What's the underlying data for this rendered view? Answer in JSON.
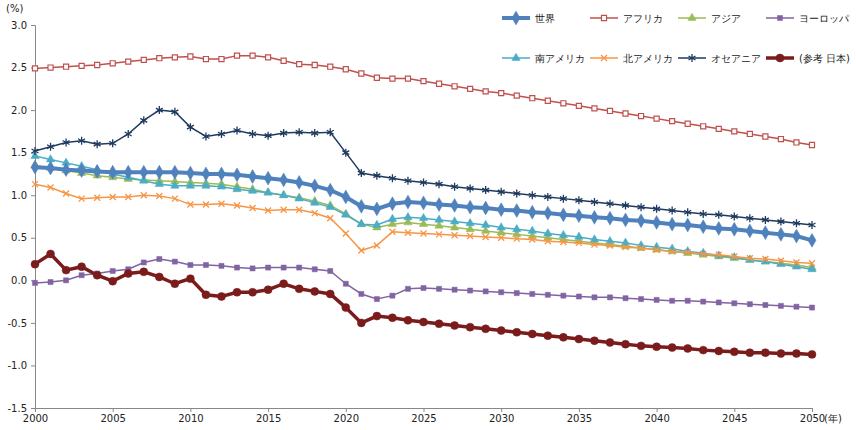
{
  "chart_data": {
    "type": "line",
    "x_label": "(年)",
    "y_label": "(%)",
    "x": [
      2000,
      2001,
      2002,
      2003,
      2004,
      2005,
      2006,
      2007,
      2008,
      2009,
      2010,
      2011,
      2012,
      2013,
      2014,
      2015,
      2016,
      2017,
      2018,
      2019,
      2020,
      2021,
      2022,
      2023,
      2024,
      2025,
      2026,
      2027,
      2028,
      2029,
      2030,
      2031,
      2032,
      2033,
      2034,
      2035,
      2036,
      2037,
      2038,
      2039,
      2040,
      2041,
      2042,
      2043,
      2044,
      2045,
      2046,
      2047,
      2048,
      2049,
      2050
    ],
    "xlim": [
      2000,
      2050
    ],
    "xticks": [
      2000,
      2005,
      2010,
      2015,
      2020,
      2025,
      2030,
      2035,
      2040,
      2045,
      2050
    ],
    "ylim": [
      -1.5,
      3.0
    ],
    "yticks": [
      -1.5,
      {
        "value": -1.0,
        "label": "-1.0"
      },
      -0.5,
      {
        "value": 0,
        "label": "0.0"
      },
      0.5,
      {
        "value": 1.0,
        "label": "1.0"
      },
      1.5,
      {
        "value": 2.0,
        "label": "2.0"
      },
      2.5,
      {
        "value": 3.0,
        "label": "3.0"
      }
    ],
    "grid": false,
    "legend": "top-right",
    "series": [
      {
        "name": "世界",
        "color": "#4f81bd",
        "marker": "diamond",
        "line_style": "solid",
        "values": [
          1.33,
          1.32,
          1.3,
          1.29,
          1.28,
          1.27,
          1.27,
          1.27,
          1.27,
          1.27,
          1.26,
          1.25,
          1.25,
          1.24,
          1.22,
          1.2,
          1.18,
          1.15,
          1.11,
          1.06,
          0.98,
          0.87,
          0.84,
          0.9,
          0.92,
          0.91,
          0.89,
          0.88,
          0.86,
          0.85,
          0.83,
          0.82,
          0.8,
          0.79,
          0.77,
          0.76,
          0.74,
          0.73,
          0.71,
          0.7,
          0.68,
          0.66,
          0.65,
          0.63,
          0.61,
          0.6,
          0.58,
          0.56,
          0.54,
          0.52,
          0.47
        ]
      },
      {
        "name": "アフリカ",
        "color": "#c0504d",
        "marker": "square_open",
        "line_style": "solid",
        "values": [
          2.49,
          2.5,
          2.51,
          2.52,
          2.53,
          2.55,
          2.57,
          2.59,
          2.61,
          2.62,
          2.63,
          2.6,
          2.6,
          2.64,
          2.64,
          2.62,
          2.58,
          2.54,
          2.53,
          2.51,
          2.48,
          2.43,
          2.38,
          2.37,
          2.37,
          2.34,
          2.31,
          2.28,
          2.25,
          2.22,
          2.2,
          2.17,
          2.14,
          2.11,
          2.08,
          2.05,
          2.02,
          1.99,
          1.96,
          1.93,
          1.9,
          1.87,
          1.84,
          1.81,
          1.78,
          1.75,
          1.72,
          1.69,
          1.66,
          1.62,
          1.59
        ]
      },
      {
        "name": "アジア",
        "color": "#9bbb59",
        "marker": "triangle",
        "line_style": "solid",
        "values": [
          1.35,
          1.32,
          1.29,
          1.26,
          1.23,
          1.21,
          1.19,
          1.18,
          1.17,
          1.16,
          1.15,
          1.14,
          1.13,
          1.1,
          1.07,
          1.03,
          1.0,
          0.97,
          0.93,
          0.88,
          0.78,
          0.66,
          0.62,
          0.66,
          0.68,
          0.66,
          0.64,
          0.62,
          0.6,
          0.58,
          0.56,
          0.54,
          0.52,
          0.5,
          0.48,
          0.46,
          0.44,
          0.42,
          0.4,
          0.38,
          0.36,
          0.34,
          0.32,
          0.3,
          0.28,
          0.26,
          0.24,
          0.22,
          0.2,
          0.18,
          0.15
        ]
      },
      {
        "name": "ヨーロッパ",
        "color": "#8064a2",
        "marker": "square",
        "line_style": "solid",
        "values": [
          -0.03,
          -0.02,
          0.0,
          0.06,
          0.08,
          0.11,
          0.13,
          0.21,
          0.25,
          0.22,
          0.18,
          0.18,
          0.17,
          0.15,
          0.14,
          0.15,
          0.15,
          0.15,
          0.13,
          0.11,
          -0.04,
          -0.16,
          -0.22,
          -0.18,
          -0.1,
          -0.09,
          -0.1,
          -0.11,
          -0.12,
          -0.13,
          -0.14,
          -0.15,
          -0.16,
          -0.17,
          -0.18,
          -0.19,
          -0.2,
          -0.2,
          -0.21,
          -0.22,
          -0.23,
          -0.24,
          -0.24,
          -0.25,
          -0.26,
          -0.27,
          -0.28,
          -0.29,
          -0.3,
          -0.31,
          -0.32
        ]
      },
      {
        "name": "南アメリカ",
        "color": "#4bacc6",
        "marker": "triangle",
        "line_style": "solid",
        "values": [
          1.46,
          1.42,
          1.38,
          1.34,
          1.3,
          1.25,
          1.21,
          1.17,
          1.13,
          1.11,
          1.11,
          1.11,
          1.1,
          1.07,
          1.05,
          1.03,
          1.0,
          0.96,
          0.91,
          0.86,
          0.77,
          0.66,
          0.65,
          0.72,
          0.74,
          0.73,
          0.71,
          0.69,
          0.67,
          0.65,
          0.62,
          0.6,
          0.58,
          0.55,
          0.53,
          0.51,
          0.48,
          0.46,
          0.44,
          0.41,
          0.39,
          0.37,
          0.34,
          0.32,
          0.29,
          0.27,
          0.24,
          0.22,
          0.19,
          0.16,
          0.13
        ]
      },
      {
        "name": "北アメリカ",
        "color": "#f79646",
        "marker": "x",
        "line_style": "solid",
        "values": [
          1.13,
          1.09,
          1.02,
          0.96,
          0.97,
          0.98,
          0.98,
          1.0,
          0.99,
          0.96,
          0.89,
          0.89,
          0.9,
          0.88,
          0.85,
          0.82,
          0.83,
          0.83,
          0.79,
          0.73,
          0.55,
          0.35,
          0.41,
          0.57,
          0.56,
          0.55,
          0.54,
          0.53,
          0.52,
          0.51,
          0.5,
          0.49,
          0.48,
          0.46,
          0.45,
          0.44,
          0.42,
          0.41,
          0.39,
          0.38,
          0.36,
          0.34,
          0.33,
          0.31,
          0.3,
          0.28,
          0.26,
          0.25,
          0.23,
          0.21,
          0.2
        ]
      },
      {
        "name": "オセアニア",
        "color": "#1f3a5f",
        "marker": "star",
        "line_style": "solid",
        "values": [
          1.52,
          1.57,
          1.62,
          1.64,
          1.6,
          1.61,
          1.72,
          1.88,
          2.0,
          1.98,
          1.8,
          1.69,
          1.72,
          1.76,
          1.72,
          1.7,
          1.73,
          1.74,
          1.73,
          1.74,
          1.5,
          1.26,
          1.23,
          1.2,
          1.17,
          1.15,
          1.13,
          1.1,
          1.08,
          1.06,
          1.04,
          1.02,
          1.0,
          0.98,
          0.96,
          0.94,
          0.92,
          0.9,
          0.88,
          0.86,
          0.84,
          0.82,
          0.8,
          0.78,
          0.77,
          0.75,
          0.73,
          0.71,
          0.69,
          0.67,
          0.65
        ]
      },
      {
        "name": "(参考 日本)",
        "color": "#7b1c1c",
        "marker": "circle",
        "line_style": "solid",
        "values": [
          0.19,
          0.31,
          0.12,
          0.16,
          0.06,
          -0.01,
          0.08,
          0.1,
          0.04,
          -0.04,
          0.02,
          -0.17,
          -0.19,
          -0.14,
          -0.14,
          -0.11,
          -0.04,
          -0.1,
          -0.13,
          -0.16,
          -0.32,
          -0.5,
          -0.42,
          -0.44,
          -0.47,
          -0.49,
          -0.51,
          -0.53,
          -0.55,
          -0.57,
          -0.59,
          -0.61,
          -0.63,
          -0.65,
          -0.67,
          -0.69,
          -0.71,
          -0.73,
          -0.75,
          -0.77,
          -0.78,
          -0.79,
          -0.8,
          -0.82,
          -0.83,
          -0.84,
          -0.85,
          -0.85,
          -0.86,
          -0.86,
          -0.87
        ]
      }
    ]
  }
}
